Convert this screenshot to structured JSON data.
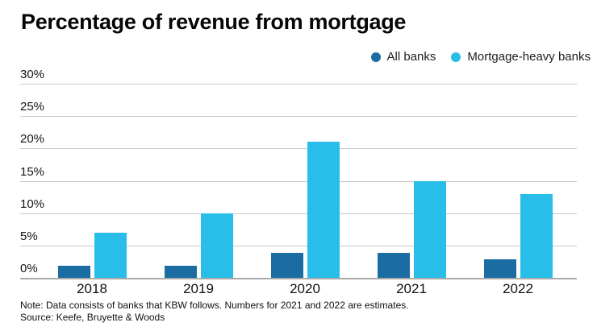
{
  "title": "Percentage of revenue from mortgage",
  "legend": {
    "items": [
      {
        "label": "All banks",
        "color": "#1C6CA4"
      },
      {
        "label": "Mortgage-heavy banks",
        "color": "#29BEE9"
      }
    ]
  },
  "chart_data": {
    "type": "bar",
    "title": "Percentage of revenue from mortgage",
    "categories": [
      "2018",
      "2019",
      "2020",
      "2021",
      "2022"
    ],
    "series": [
      {
        "name": "All banks",
        "color": "#1C6CA4",
        "values": [
          1.9,
          1.9,
          3.9,
          3.9,
          2.9
        ]
      },
      {
        "name": "Mortgage-heavy banks",
        "color": "#29BEE9",
        "values": [
          7,
          10,
          21,
          15,
          13
        ]
      }
    ],
    "xlabel": "",
    "ylabel": "",
    "ylim": [
      0,
      30
    ],
    "ytick_step": 5,
    "ytick_labels": [
      "0%",
      "5%",
      "10%",
      "15%",
      "20%",
      "25%",
      "30%"
    ],
    "grid": true,
    "legend_position": "top-right",
    "colors": {
      "gridline": "#C9C9C9",
      "axis_line": "#A9A9A9"
    }
  },
  "footer": {
    "note": "Note: Data consists of banks that KBW follows. Numbers for 2021 and 2022 are estimates.",
    "source": "Source: Keefe, Bruyette & Woods"
  }
}
